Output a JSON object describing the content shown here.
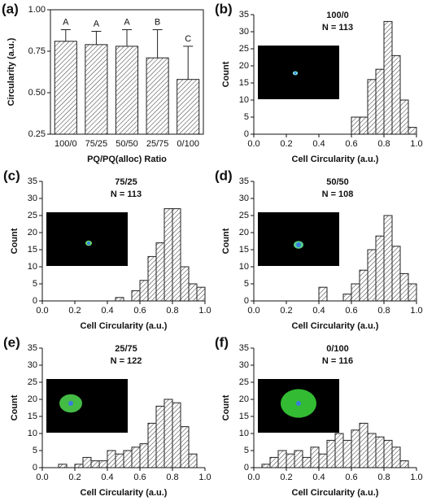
{
  "chart_data": [
    {
      "type": "bar",
      "panel_label": "(a)",
      "xlabel": "PQ/PQ(alloc) Ratio",
      "ylabel": "Circularity (a.u.)",
      "categories": [
        "100/0",
        "75/25",
        "50/50",
        "25/75",
        "0/100"
      ],
      "values": [
        0.81,
        0.79,
        0.78,
        0.71,
        0.58
      ],
      "errors": [
        0.07,
        0.08,
        0.1,
        0.17,
        0.2
      ],
      "annotations": [
        "A",
        "A",
        "A",
        "B",
        "C"
      ],
      "ylim": [
        0.25,
        1.0
      ],
      "yticks": [
        {
          "value": 0.25,
          "label": "0.25"
        },
        {
          "value": 0.5,
          "label": "0.50"
        },
        {
          "value": 0.75,
          "label": "0.75"
        },
        {
          "value": 1.0,
          "label": "1.00"
        }
      ]
    },
    {
      "type": "histogram",
      "panel_label": "(b)",
      "title": "100/0",
      "subtitle": "N = 113",
      "xlabel": "Cell Circularity (a.u.)",
      "ylabel": "Count",
      "bins": [
        0,
        0.05,
        0.1,
        0.15,
        0.2,
        0.25,
        0.3,
        0.35,
        0.4,
        0.45,
        0.5,
        0.55,
        0.6,
        0.65,
        0.7,
        0.75,
        0.8,
        0.85,
        0.9,
        0.95,
        1.0
      ],
      "counts": [
        0,
        0,
        0,
        0,
        0,
        0,
        0,
        0,
        0,
        0,
        0,
        0,
        5,
        5,
        16,
        19,
        33,
        23,
        10,
        2
      ],
      "xlim": [
        0,
        1
      ],
      "ylim": [
        0,
        35
      ],
      "xticks": [
        {
          "value": 0,
          "label": "0.0"
        },
        {
          "value": 0.2,
          "label": "0.2"
        },
        {
          "value": 0.4,
          "label": "0.4"
        },
        {
          "value": 0.6,
          "label": "0.6"
        },
        {
          "value": 0.8,
          "label": "0.8"
        },
        {
          "value": 1.0,
          "label": "1.0"
        }
      ],
      "yticks": [
        0,
        5,
        10,
        15,
        20,
        25,
        30,
        35
      ]
    },
    {
      "type": "histogram",
      "panel_label": "(c)",
      "title": "75/25",
      "subtitle": "N = 113",
      "xlabel": "Cell Circularity (a.u.)",
      "ylabel": "Count",
      "bins": [
        0,
        0.05,
        0.1,
        0.15,
        0.2,
        0.25,
        0.3,
        0.35,
        0.4,
        0.45,
        0.5,
        0.55,
        0.6,
        0.65,
        0.7,
        0.75,
        0.8,
        0.85,
        0.9,
        0.95,
        1.0
      ],
      "counts": [
        0,
        0,
        0,
        0,
        0,
        0,
        0,
        0,
        0,
        1,
        0,
        3,
        6,
        13,
        17,
        27,
        27,
        10,
        5,
        4
      ],
      "xlim": [
        0,
        1
      ],
      "ylim": [
        0,
        35
      ],
      "xticks": [
        {
          "value": 0,
          "label": "0.0"
        },
        {
          "value": 0.2,
          "label": "0.2"
        },
        {
          "value": 0.4,
          "label": "0.4"
        },
        {
          "value": 0.6,
          "label": "0.6"
        },
        {
          "value": 0.8,
          "label": "0.8"
        },
        {
          "value": 1.0,
          "label": "1.0"
        }
      ],
      "yticks": [
        0,
        5,
        10,
        15,
        20,
        25,
        30,
        35
      ]
    },
    {
      "type": "histogram",
      "panel_label": "(d)",
      "title": "50/50",
      "subtitle": "N = 108",
      "xlabel": "Cell Circularity (a.u.)",
      "ylabel": "Count",
      "bins": [
        0,
        0.05,
        0.1,
        0.15,
        0.2,
        0.25,
        0.3,
        0.35,
        0.4,
        0.45,
        0.5,
        0.55,
        0.6,
        0.65,
        0.7,
        0.75,
        0.8,
        0.85,
        0.9,
        0.95,
        1.0
      ],
      "counts": [
        0,
        0,
        0,
        0,
        0,
        0,
        0,
        0,
        4,
        0,
        0,
        2,
        5,
        9,
        15,
        19,
        25,
        16,
        8,
        5
      ],
      "xlim": [
        0,
        1
      ],
      "ylim": [
        0,
        35
      ],
      "xticks": [
        {
          "value": 0,
          "label": "0.0"
        },
        {
          "value": 0.2,
          "label": "0.2"
        },
        {
          "value": 0.4,
          "label": "0.4"
        },
        {
          "value": 0.6,
          "label": "0.6"
        },
        {
          "value": 0.8,
          "label": "0.8"
        },
        {
          "value": 1.0,
          "label": "1.0"
        }
      ],
      "yticks": [
        0,
        5,
        10,
        15,
        20,
        25,
        30,
        35
      ]
    },
    {
      "type": "histogram",
      "panel_label": "(e)",
      "title": "25/75",
      "subtitle": "N = 122",
      "xlabel": "Cell Circularity (a.u.)",
      "ylabel": "Count",
      "bins": [
        0,
        0.05,
        0.1,
        0.15,
        0.2,
        0.25,
        0.3,
        0.35,
        0.4,
        0.45,
        0.5,
        0.55,
        0.6,
        0.65,
        0.7,
        0.75,
        0.8,
        0.85,
        0.9,
        0.95,
        1.0
      ],
      "counts": [
        0,
        0,
        1,
        0,
        1,
        3,
        2,
        2,
        5,
        4,
        5,
        6,
        7,
        13,
        18,
        20,
        19,
        12,
        4,
        0
      ],
      "xlim": [
        0,
        1
      ],
      "ylim": [
        0,
        35
      ],
      "xticks": [
        {
          "value": 0,
          "label": "0.0"
        },
        {
          "value": 0.2,
          "label": "0.2"
        },
        {
          "value": 0.4,
          "label": "0.4"
        },
        {
          "value": 0.6,
          "label": "0.6"
        },
        {
          "value": 0.8,
          "label": "0.8"
        },
        {
          "value": 1.0,
          "label": "1.0"
        }
      ],
      "yticks": [
        0,
        5,
        10,
        15,
        20,
        25,
        30,
        35
      ]
    },
    {
      "type": "histogram",
      "panel_label": "(f)",
      "title": "0/100",
      "subtitle": "N = 116",
      "xlabel": "Cell Circularity (a.u.)",
      "ylabel": "Count",
      "bins": [
        0,
        0.05,
        0.1,
        0.15,
        0.2,
        0.25,
        0.3,
        0.35,
        0.4,
        0.45,
        0.5,
        0.55,
        0.6,
        0.65,
        0.7,
        0.75,
        0.8,
        0.85,
        0.9,
        0.95,
        1.0
      ],
      "counts": [
        0,
        1,
        3,
        5,
        4,
        5,
        3,
        6,
        4,
        8,
        10,
        8,
        11,
        13,
        10,
        9,
        8,
        6,
        2,
        0
      ],
      "xlim": [
        0,
        1
      ],
      "ylim": [
        0,
        35
      ],
      "xticks": [
        {
          "value": 0,
          "label": "0.0"
        },
        {
          "value": 0.2,
          "label": "0.2"
        },
        {
          "value": 0.4,
          "label": "0.4"
        },
        {
          "value": 0.6,
          "label": "0.6"
        },
        {
          "value": 0.8,
          "label": "0.8"
        },
        {
          "value": 1.0,
          "label": "1.0"
        }
      ],
      "yticks": [
        0,
        5,
        10,
        15,
        20,
        25,
        30,
        35
      ]
    }
  ]
}
